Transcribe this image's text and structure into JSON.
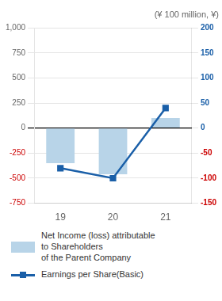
{
  "chart_data": {
    "type": "bar",
    "title": "(¥ 100 million, ¥)",
    "categories": [
      "19",
      "20",
      "21"
    ],
    "series": [
      {
        "name": "Net Income (loss) attributable\nto Shareholders\nof the Parent Company",
        "type": "bar",
        "color": "#b8d4e8",
        "values": [
          -350,
          -460,
          100
        ]
      },
      {
        "name": "Earnings per Share(Basic)",
        "type": "line",
        "color": "#1a5fa8",
        "marker": "square",
        "axis": "y2",
        "values": [
          -80,
          -100,
          40
        ]
      }
    ],
    "ylim": [
      -750,
      1000
    ],
    "yticks": [
      -750,
      -500,
      -250,
      0,
      250,
      500,
      750,
      {
        "value": 1000,
        "label": "1,000"
      }
    ],
    "y2lim": [
      -150,
      200
    ],
    "y2ticks": [
      -150,
      -100,
      -50,
      0,
      50,
      100,
      150,
      200
    ],
    "grid": true,
    "legend": "bottom"
  }
}
